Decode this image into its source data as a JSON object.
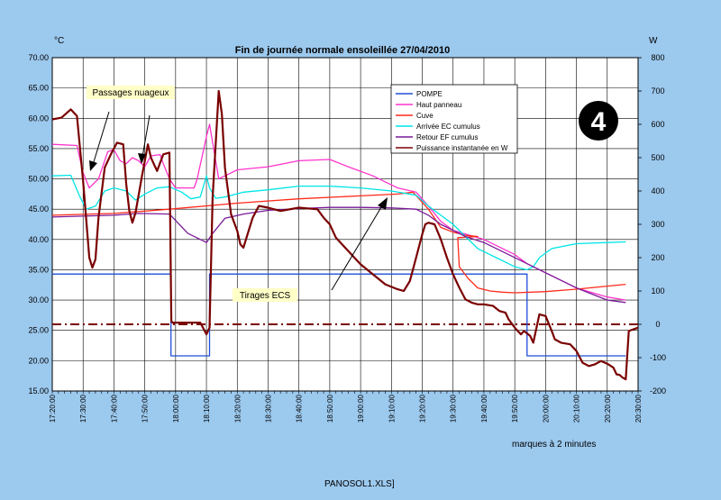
{
  "footer": "PANOSOL1.XLS]",
  "chart_data": {
    "type": "line",
    "title": "Fin de journée normale ensoleillée 27/04/2010",
    "y_left_unit": "°C",
    "y_right_unit": "W",
    "y_left_range": [
      15,
      70
    ],
    "y_right_range": [
      -200,
      800
    ],
    "y_left_ticks": [
      "15.00",
      "20.00",
      "25.00",
      "30.00",
      "35.00",
      "40.00",
      "45.00",
      "50.00",
      "55.00",
      "60.00",
      "65.00",
      "70.00"
    ],
    "y_right_ticks": [
      "-200",
      "-100",
      "0",
      "100",
      "200",
      "300",
      "400",
      "500",
      "600",
      "700",
      "800"
    ],
    "x_tick_labels": [
      "17:20:00",
      "17:30:00",
      "17:40:00",
      "17:50:00",
      "18:00:00",
      "18:10:00",
      "18:20:00",
      "18:30:00",
      "18:40:00",
      "18:50:00",
      "19:00:00",
      "19:10:00",
      "19:20:00",
      "19:30:00",
      "19:40:00",
      "19:50:00",
      "20:00:00",
      "20:10:00",
      "20:20:00",
      "20:30:00"
    ],
    "x_note": "marques à 2 minutes",
    "grid": true,
    "legend_position": "top-center",
    "series": [
      {
        "name": "POMPE",
        "color": "#1f4fd8",
        "axis": "left",
        "points": [
          [
            0,
            34.3
          ],
          [
            38.5,
            34.3
          ],
          [
            38.5,
            20.8
          ],
          [
            51,
            20.8
          ],
          [
            51,
            34.3
          ],
          [
            154,
            34.3
          ],
          [
            154,
            20.8
          ],
          [
            186,
            20.8
          ]
        ]
      },
      {
        "name": "Haut panneau",
        "color": "#ff33cc",
        "axis": "left",
        "points": [
          [
            0,
            55.7
          ],
          [
            8,
            55.5
          ],
          [
            10,
            51
          ],
          [
            12,
            48.5
          ],
          [
            15,
            50
          ],
          [
            18,
            54.5
          ],
          [
            20,
            54.8
          ],
          [
            22,
            53
          ],
          [
            24,
            52.5
          ],
          [
            26,
            53.5
          ],
          [
            28,
            53
          ],
          [
            30,
            52
          ],
          [
            32,
            53.8
          ],
          [
            35,
            54
          ],
          [
            36,
            52.5
          ],
          [
            38,
            50
          ],
          [
            40,
            48.5
          ],
          [
            46,
            48.5
          ],
          [
            47,
            50
          ],
          [
            50,
            57
          ],
          [
            51,
            59
          ],
          [
            52,
            56
          ],
          [
            54,
            50
          ],
          [
            56,
            50.5
          ],
          [
            60,
            51.5
          ],
          [
            70,
            52
          ],
          [
            80,
            53
          ],
          [
            90,
            53.2
          ],
          [
            96,
            52
          ],
          [
            104,
            50.5
          ],
          [
            108,
            49.5
          ],
          [
            112,
            48.5
          ],
          [
            118,
            47.8
          ],
          [
            122,
            45.5
          ],
          [
            126,
            43
          ],
          [
            130,
            41.5
          ],
          [
            140,
            40
          ],
          [
            150,
            37.5
          ],
          [
            154,
            36
          ],
          [
            160,
            34.5
          ],
          [
            170,
            32
          ],
          [
            180,
            30.5
          ],
          [
            186,
            30
          ]
        ]
      },
      {
        "name": "Cuve",
        "color": "#ff2a1a",
        "axis": "left",
        "points": [
          [
            0,
            44
          ],
          [
            20,
            44.3
          ],
          [
            38,
            45
          ],
          [
            60,
            46
          ],
          [
            80,
            46.7
          ],
          [
            100,
            47.2
          ],
          [
            112,
            47.5
          ],
          [
            117,
            47.8
          ],
          [
            122,
            45
          ],
          [
            126,
            42
          ],
          [
            130,
            41.2
          ],
          [
            134,
            40.7
          ],
          [
            138,
            40.5
          ],
          [
            131.5,
            40.3
          ],
          [
            132,
            35.5
          ],
          [
            135,
            33.5
          ],
          [
            138,
            32
          ],
          [
            142,
            31.5
          ],
          [
            146,
            31.3
          ],
          [
            150,
            31.2
          ],
          [
            160,
            31.4
          ],
          [
            170,
            31.8
          ],
          [
            180,
            32.3
          ],
          [
            186,
            32.6
          ]
        ]
      },
      {
        "name": "Arrivée EC cumulus",
        "color": "#00e5e5",
        "axis": "left",
        "points": [
          [
            0,
            50.5
          ],
          [
            6,
            50.6
          ],
          [
            9,
            47
          ],
          [
            11,
            45
          ],
          [
            14,
            45.5
          ],
          [
            17,
            48
          ],
          [
            20,
            48.5
          ],
          [
            24,
            48
          ],
          [
            27,
            46.5
          ],
          [
            30,
            47.5
          ],
          [
            34,
            48.5
          ],
          [
            38,
            48.7
          ],
          [
            42,
            47.8
          ],
          [
            45,
            46.7
          ],
          [
            48,
            47
          ],
          [
            50,
            50.5
          ],
          [
            51,
            48.5
          ],
          [
            53,
            46.8
          ],
          [
            56,
            47
          ],
          [
            62,
            47.8
          ],
          [
            70,
            48.2
          ],
          [
            80,
            48.8
          ],
          [
            90,
            48.8
          ],
          [
            100,
            48.5
          ],
          [
            110,
            48
          ],
          [
            118,
            47.3
          ],
          [
            122,
            45.5
          ],
          [
            126,
            44
          ],
          [
            130,
            42.5
          ],
          [
            134,
            40.5
          ],
          [
            138,
            38.5
          ],
          [
            144,
            37
          ],
          [
            150,
            35.5
          ],
          [
            154,
            35
          ],
          [
            156,
            35.5
          ],
          [
            158,
            37
          ],
          [
            162,
            38.5
          ],
          [
            170,
            39.3
          ],
          [
            180,
            39.5
          ],
          [
            186,
            39.6
          ]
        ]
      },
      {
        "name": "Retour EF cumulus",
        "color": "#7a1a99",
        "axis": "left",
        "points": [
          [
            0,
            43.7
          ],
          [
            20,
            44
          ],
          [
            28,
            44.3
          ],
          [
            38,
            44.2
          ],
          [
            44,
            41
          ],
          [
            50,
            39.5
          ],
          [
            52,
            41
          ],
          [
            56,
            43.5
          ],
          [
            62,
            44.2
          ],
          [
            70,
            44.8
          ],
          [
            80,
            45.1
          ],
          [
            90,
            45.3
          ],
          [
            100,
            45.3
          ],
          [
            110,
            45.2
          ],
          [
            118,
            45
          ],
          [
            122,
            44
          ],
          [
            126,
            42.5
          ],
          [
            130,
            41.5
          ],
          [
            134,
            40.5
          ],
          [
            140,
            39.5
          ],
          [
            148,
            37.5
          ],
          [
            154,
            36
          ],
          [
            160,
            34.5
          ],
          [
            170,
            32
          ],
          [
            180,
            30
          ],
          [
            186,
            29.6
          ]
        ]
      },
      {
        "name": "Puissance instantanée en W",
        "color": "#7a0000",
        "axis": "right",
        "points": [
          [
            0,
            615
          ],
          [
            3,
            620
          ],
          [
            6,
            645
          ],
          [
            8,
            625
          ],
          [
            10,
            430
          ],
          [
            12,
            200
          ],
          [
            13,
            170
          ],
          [
            14,
            195
          ],
          [
            15,
            320
          ],
          [
            17,
            470
          ],
          [
            19,
            510
          ],
          [
            21,
            545
          ],
          [
            23,
            540
          ],
          [
            24,
            420
          ],
          [
            25,
            340
          ],
          [
            26,
            305
          ],
          [
            27,
            335
          ],
          [
            29,
            440
          ],
          [
            31,
            540
          ],
          [
            32,
            500
          ],
          [
            34,
            460
          ],
          [
            36,
            510
          ],
          [
            38,
            515
          ],
          [
            38.6,
            10
          ],
          [
            39,
            5
          ],
          [
            44,
            5
          ],
          [
            48,
            5
          ],
          [
            50,
            -30
          ],
          [
            51,
            -10
          ],
          [
            52,
            380
          ],
          [
            54,
            700
          ],
          [
            55,
            630
          ],
          [
            56,
            470
          ],
          [
            58,
            330
          ],
          [
            60,
            280
          ],
          [
            61,
            240
          ],
          [
            62,
            230
          ],
          [
            63,
            260
          ],
          [
            65,
            320
          ],
          [
            67,
            355
          ],
          [
            70,
            350
          ],
          [
            74,
            340
          ],
          [
            80,
            350
          ],
          [
            86,
            345
          ],
          [
            88,
            320
          ],
          [
            90,
            300
          ],
          [
            92,
            260
          ],
          [
            96,
            220
          ],
          [
            100,
            180
          ],
          [
            104,
            150
          ],
          [
            108,
            120
          ],
          [
            112,
            105
          ],
          [
            114,
            100
          ],
          [
            116,
            130
          ],
          [
            118,
            200
          ],
          [
            120,
            270
          ],
          [
            121,
            300
          ],
          [
            122,
            305
          ],
          [
            124,
            300
          ],
          [
            126,
            255
          ],
          [
            128,
            200
          ],
          [
            130,
            150
          ],
          [
            132,
            110
          ],
          [
            134,
            75
          ],
          [
            136,
            65
          ],
          [
            138,
            60
          ],
          [
            140,
            60
          ],
          [
            143,
            55
          ],
          [
            145,
            40
          ],
          [
            147,
            35
          ],
          [
            148,
            15
          ],
          [
            150,
            -10
          ],
          [
            152,
            -30
          ],
          [
            153,
            -20
          ],
          [
            155,
            -35
          ],
          [
            156,
            -55
          ],
          [
            158,
            30
          ],
          [
            160,
            25
          ],
          [
            162,
            -20
          ],
          [
            163,
            -45
          ],
          [
            165,
            -55
          ],
          [
            168,
            -60
          ],
          [
            170,
            -80
          ],
          [
            172,
            -115
          ],
          [
            174,
            -125
          ],
          [
            176,
            -120
          ],
          [
            178,
            -110
          ],
          [
            180,
            -118
          ],
          [
            182,
            -130
          ],
          [
            183,
            -150
          ],
          [
            184,
            -152
          ],
          [
            185,
            -160
          ],
          [
            186,
            -165
          ],
          [
            187,
            -20
          ],
          [
            190,
            -10
          ]
        ]
      }
    ],
    "reference_line": {
      "name": "zéro puissance",
      "color": "#7a0000",
      "axis": "right",
      "value": 0
    },
    "annotations": [
      {
        "text": "Passages nuageux"
      },
      {
        "text": "Tirages ECS"
      },
      {
        "text": "4"
      }
    ]
  }
}
